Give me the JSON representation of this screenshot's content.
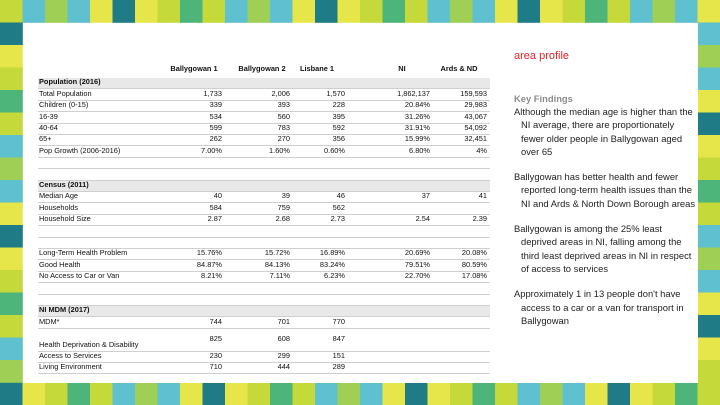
{
  "header": {
    "title": "area profile"
  },
  "table": {
    "columns": [
      "Ballygowan 1",
      "Ballygowan 2",
      "Lisbane 1",
      "NI",
      "Ards & ND"
    ],
    "sections": [
      {
        "title": "Population (2016)",
        "rows": [
          {
            "label": "Total Population",
            "values": [
              "1,733",
              "2,006",
              "1,570",
              "1,862,137",
              "159,593"
            ]
          },
          {
            "label": "Children (0-15)",
            "values": [
              "339",
              "393",
              "228",
              "20.84%",
              "29,983"
            ]
          },
          {
            "label": "16-39",
            "values": [
              "534",
              "560",
              "395",
              "31.26%",
              "43,067"
            ]
          },
          {
            "label": "40-64",
            "values": [
              "599",
              "783",
              "592",
              "31.91%",
              "54,092"
            ]
          },
          {
            "label": "65+",
            "values": [
              "262",
              "270",
              "356",
              "15.99%",
              "32,451"
            ]
          },
          {
            "label": "Pop Growth (2006-2016)",
            "values": [
              "7.00%",
              "1.60%",
              "0.60%",
              "6.80%",
              "4%"
            ]
          }
        ]
      },
      {
        "title": "Census (2011)",
        "rows": [
          {
            "label": "Median Age",
            "values": [
              "40",
              "39",
              "46",
              "37",
              "41"
            ]
          },
          {
            "label": "Households",
            "values": [
              "584",
              "759",
              "562"
            ]
          },
          {
            "label": "Household Size",
            "values": [
              "2.87",
              "2.68",
              "2.73",
              "2.54",
              "2.39"
            ]
          }
        ]
      },
      {
        "rows": [
          {
            "label": "Long-Term Health Problem",
            "values": [
              "15.76%",
              "15.72%",
              "16.89%",
              "20.69%",
              "20.08%"
            ]
          },
          {
            "label": "Good Health",
            "values": [
              "84.87%",
              "84.13%",
              "83.24%",
              "79.51%",
              "80.59%"
            ]
          },
          {
            "label": "No Access to Car or Van",
            "values": [
              "8.21%",
              "7.11%",
              "6.23%",
              "22.70%",
              "17.08%"
            ]
          }
        ]
      },
      {
        "title": "NI MDM (2017)",
        "rows": [
          {
            "label": "MDM*",
            "values": [
              "744",
              "701",
              "770"
            ]
          },
          {
            "label": "Health Deprivation & Disability",
            "values": [
              "825",
              "608",
              "847"
            ]
          },
          {
            "label": "Access to Services",
            "values": [
              "230",
              "299",
              "151"
            ]
          },
          {
            "label": "Living Environment",
            "values": [
              "710",
              "444",
              "289"
            ]
          }
        ]
      }
    ]
  },
  "findings": {
    "heading": "Key Findings",
    "items": [
      "Although the median age is higher than the NI average, there are proportionately fewer older people in Ballygowan aged over 65",
      "Ballygowan has better health and fewer reported long-term health issues than the NI and Ards & North Down Borough areas",
      "Ballygowan is among the 25% least deprived areas in NI, falling among the third least deprived areas in NI in respect of access to services",
      "Approximately 1 in 13 people don't have access to a car or a van for transport in Ballygowan"
    ]
  }
}
